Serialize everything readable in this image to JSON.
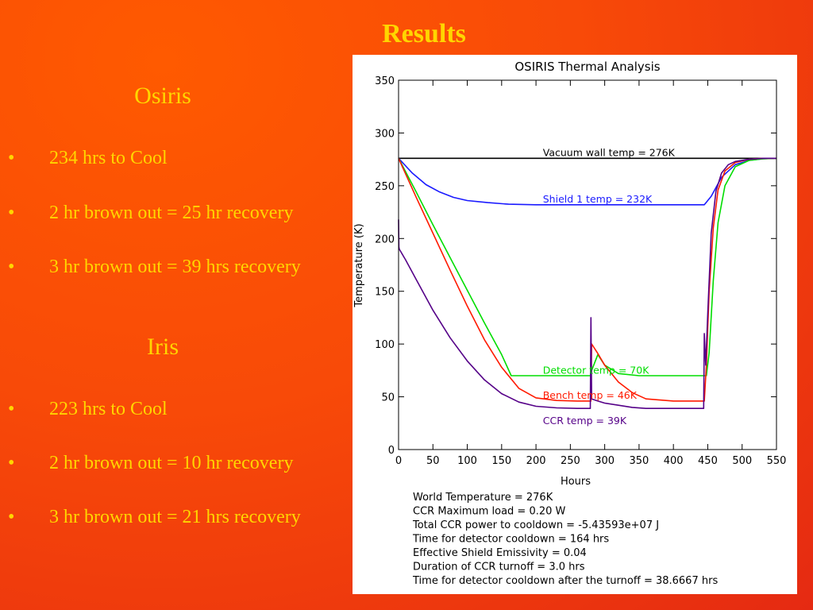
{
  "slide": {
    "title": "Results",
    "sections": [
      {
        "heading": "Osiris",
        "bullets": [
          "234 hrs to Cool",
          "2 hr brown out = 25 hr recovery",
          "3 hr brown out = 39 hrs recovery"
        ]
      },
      {
        "heading": "Iris",
        "bullets": [
          "223 hrs to Cool",
          "2 hr brown out =  10 hr recovery",
          "3 hr brown out = 21 hrs recovery"
        ]
      }
    ],
    "bullet_glyph": "•"
  },
  "chart_data": {
    "type": "line",
    "title": "OSIRIS Thermal Analysis",
    "xlabel": "Hours",
    "ylabel": "Temperature (K)",
    "xlim": [
      0,
      550
    ],
    "ylim": [
      0,
      350
    ],
    "xticks": [
      0,
      50,
      100,
      150,
      200,
      250,
      300,
      350,
      400,
      450,
      500,
      550
    ],
    "yticks": [
      0,
      50,
      100,
      150,
      200,
      250,
      300,
      350
    ],
    "series": [
      {
        "name": "Vacuum wall temp = 276K",
        "color": "#000000",
        "x": [
          0,
          550
        ],
        "y": [
          276,
          276
        ]
      },
      {
        "name": "Shield 1 temp = 232K",
        "color": "#1a1aff",
        "x": [
          0,
          20,
          40,
          60,
          80,
          100,
          130,
          160,
          200,
          250,
          280,
          300,
          350,
          400,
          445,
          455,
          470,
          490,
          510,
          530,
          550
        ],
        "y": [
          276,
          262,
          251,
          244,
          239,
          236,
          234,
          232.5,
          232,
          232,
          232,
          232,
          232,
          232,
          232,
          240,
          258,
          270,
          274,
          275.5,
          276
        ]
      },
      {
        "name": "Detector temp = 70K",
        "color": "#00dd00",
        "x": [
          0,
          25,
          50,
          75,
          100,
          125,
          150,
          164,
          200,
          250,
          280,
          281,
          290,
          300,
          320,
          350,
          400,
          448,
          452,
          458,
          465,
          475,
          490,
          510,
          530,
          550
        ],
        "y": [
          276,
          245,
          213,
          182,
          151,
          120,
          90,
          70,
          70,
          70,
          70,
          75,
          90,
          80,
          72,
          70,
          70,
          70,
          92,
          160,
          215,
          250,
          268,
          274,
          275.5,
          276
        ]
      },
      {
        "name": "Bench temp = 46K",
        "color": "#ff1a00",
        "x": [
          0,
          25,
          50,
          75,
          100,
          125,
          150,
          175,
          200,
          230,
          260,
          280,
          281,
          290,
          300,
          320,
          340,
          360,
          400,
          445,
          448,
          452,
          458,
          465,
          475,
          490,
          510,
          530,
          550
        ],
        "y": [
          276,
          240,
          205,
          170,
          136,
          104,
          78,
          58,
          49,
          46.5,
          46,
          46,
          100,
          91,
          80,
          64,
          54,
          48,
          46,
          46,
          80,
          150,
          210,
          246,
          264,
          272,
          275,
          276,
          276
        ]
      },
      {
        "name": "CCR temp = 39K",
        "color": "#550088",
        "x": [
          0,
          0.5,
          1,
          10,
          25,
          50,
          75,
          100,
          125,
          150,
          175,
          200,
          230,
          260,
          279,
          280,
          281,
          290,
          300,
          320,
          340,
          360,
          400,
          444,
          445,
          447,
          450,
          455,
          462,
          470,
          480,
          490,
          510,
          530,
          550
        ],
        "y": [
          218,
          192,
          190,
          180,
          162,
          132,
          106,
          84,
          66,
          53,
          45,
          41,
          39.5,
          39,
          39,
          125,
          48,
          46,
          44,
          42,
          40,
          39,
          39,
          39,
          110,
          80,
          130,
          205,
          245,
          262,
          270,
          273,
          275,
          276,
          276
        ]
      }
    ],
    "annotations": [
      {
        "text": "Vacuum wall temp = 276K",
        "x": 210,
        "y": 278,
        "color": "#000000"
      },
      {
        "text": "Shield 1 temp = 232K",
        "x": 210,
        "y": 234,
        "color": "#1a1aff"
      },
      {
        "text": "Detector temp = 70K",
        "x": 210,
        "y": 72,
        "color": "#00dd00"
      },
      {
        "text": "Bench temp = 46K",
        "x": 210,
        "y": 48,
        "color": "#ff1a00"
      },
      {
        "text": "CCR temp = 39K",
        "x": 210,
        "y": 24,
        "color": "#550088"
      }
    ],
    "footnotes": [
      "World Temperature = 276K",
      "CCR Maximum load = 0.20 W",
      "Total CCR power to cooldown = -5.43593e+07 J",
      "Time for detector cooldown = 164 hrs",
      "Effective Shield Emissivity = 0.04",
      "Duration of CCR turnoff = 3.0 hrs",
      "Time for detector cooldown after the turnoff = 38.6667 hrs"
    ]
  }
}
